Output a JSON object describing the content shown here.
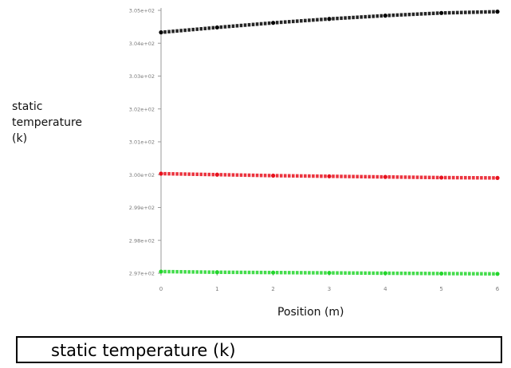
{
  "chart_data": {
    "type": "scatter",
    "ylabel_lines": [
      "static",
      "temperature",
      "(k)"
    ],
    "xlabel": "Position (m)",
    "title": "static temperature (k)",
    "xlim": [
      0,
      6
    ],
    "ylim": [
      297,
      305
    ],
    "x_ticks": [
      "0",
      "1",
      "2",
      "3",
      "4",
      "5",
      "6"
    ],
    "y_ticks": [
      "2.97e+02",
      "2.98e+02",
      "2.99e+02",
      "3.00e+02",
      "3.01e+02",
      "3.02e+02",
      "3.03e+02",
      "3.04e+02",
      "3.05e+02"
    ],
    "grid": false,
    "series": [
      {
        "color": "#000000",
        "x": [
          0,
          1,
          2,
          3,
          4,
          5,
          6
        ],
        "y": [
          304.33,
          304.48,
          304.62,
          304.74,
          304.84,
          304.92,
          304.96
        ]
      },
      {
        "color": "#e8111d",
        "x": [
          0,
          1,
          2,
          3,
          4,
          5,
          6
        ],
        "y": [
          300.03,
          300.0,
          299.97,
          299.95,
          299.93,
          299.91,
          299.9
        ]
      },
      {
        "color": "#22d62b",
        "x": [
          0,
          1,
          2,
          3,
          4,
          5,
          6
        ],
        "y": [
          297.05,
          297.03,
          297.02,
          297.01,
          297.0,
          296.99,
          296.98
        ]
      }
    ]
  }
}
